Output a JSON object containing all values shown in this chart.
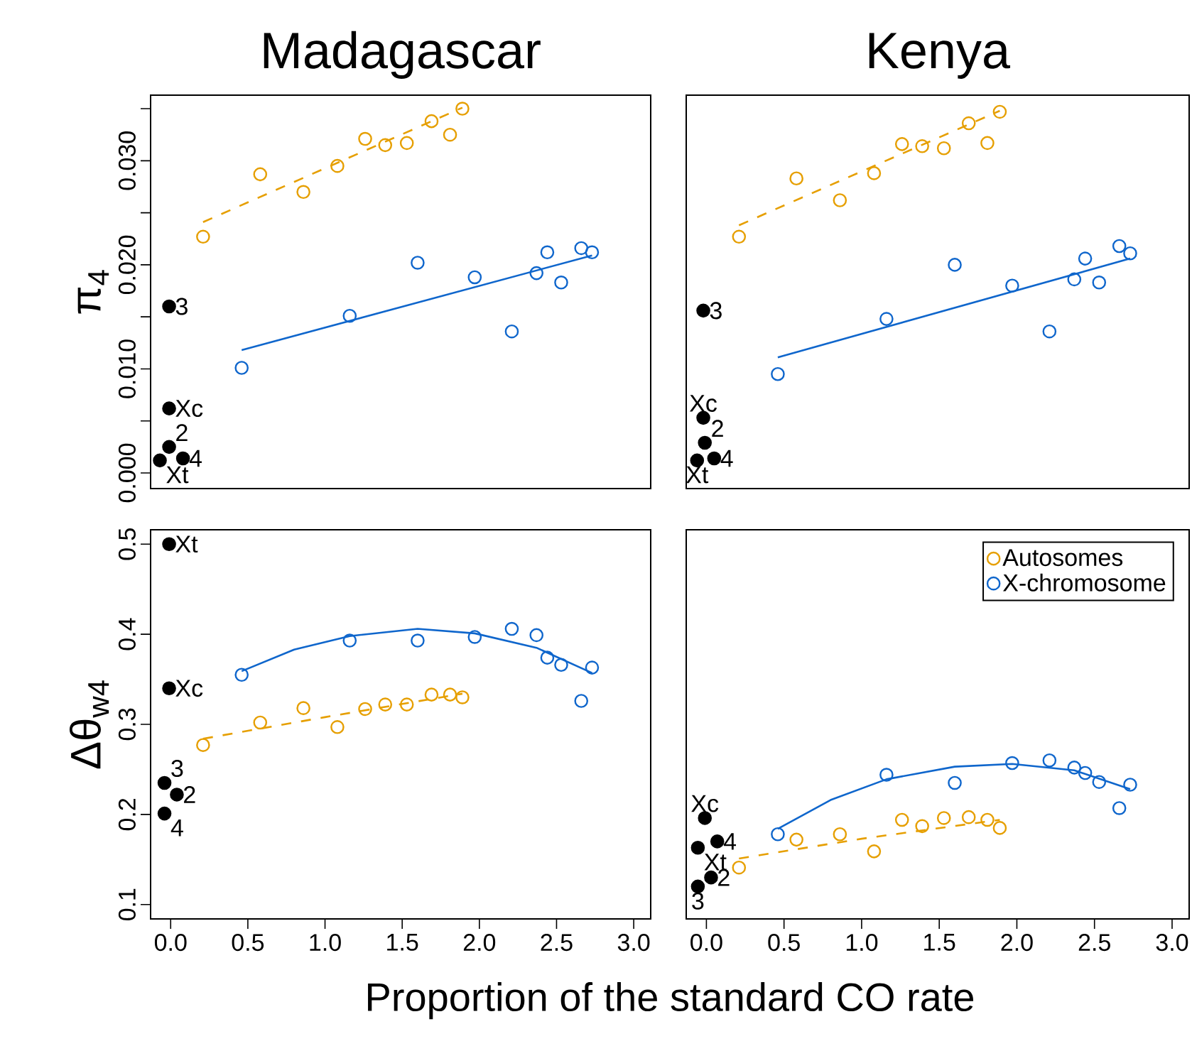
{
  "chart_data": [
    {
      "type": "scatter",
      "title": "Madagascar",
      "ylabel": "π$_{4}$",
      "xlim": [
        -0.13,
        3.11
      ],
      "ylim": [
        -0.0015,
        0.0363
      ],
      "yticks": [
        {
          "value": 0,
          "label": "0.000"
        },
        {
          "value": 0.005,
          "label": null
        },
        {
          "value": 0.01,
          "label": "0.010"
        },
        {
          "value": 0.015,
          "label": null
        },
        {
          "value": 0.02,
          "label": "0.020"
        },
        {
          "value": 0.025,
          "label": null
        },
        {
          "value": 0.03,
          "label": "0.030"
        },
        {
          "value": 0.035,
          "label": null
        }
      ],
      "tick_labels": "y",
      "marker": "circle",
      "series": [
        {
          "color": "#e69f00",
          "x": [
            0.21,
            0.58,
            0.86,
            1.08,
            1.26,
            1.39,
            1.53,
            1.69,
            1.81,
            1.89
          ],
          "values": [
            0.0227,
            0.0287,
            0.027,
            0.0295,
            0.0321,
            0.0315,
            0.0317,
            0.0338,
            0.0325,
            0.035
          ]
        },
        {
          "color": "#0f66cc",
          "x": [
            0.46,
            1.16,
            1.6,
            1.97,
            2.21,
            2.37,
            2.44,
            2.53,
            2.66,
            2.73
          ],
          "values": [
            0.0101,
            0.0151,
            0.0202,
            0.0188,
            0.0136,
            0.0192,
            0.0212,
            0.0183,
            0.0216,
            0.0212
          ]
        },
        {
          "color": "#000000",
          "x": [
            -0.01,
            -0.01,
            -0.01,
            0.08,
            -0.07
          ],
          "values": [
            0.016,
            0.0062,
            0.0025,
            0.0014,
            0.0012
          ]
        },
        {
          "type": "line",
          "marker": "none",
          "line_style": "dashed",
          "color": "#e69f00",
          "x": [
            0.21,
            1.89
          ],
          "values": [
            0.0241,
            0.0351
          ]
        },
        {
          "type": "line",
          "marker": "none",
          "line_style": "solid",
          "color": "#0f66cc",
          "x": [
            0.46,
            2.73
          ],
          "values": [
            0.0118,
            0.0209
          ]
        }
      ],
      "annotations": [
        {
          "text": "3",
          "x": -0.01,
          "y": 0.016
        },
        {
          "text": "Xc",
          "x": -0.01,
          "y": 0.0062
        },
        {
          "text": "2",
          "x": -0.01,
          "y": 0.0025
        },
        {
          "text": "4",
          "x": 0.08,
          "y": 0.0014
        },
        {
          "text": "Xt",
          "x": -0.07,
          "y": 0.0012
        }
      ]
    },
    {
      "type": "scatter",
      "title": "Kenya",
      "xlim": [
        -0.13,
        3.11
      ],
      "ylim": [
        -0.0015,
        0.0363
      ],
      "tick_labels": false,
      "marker": "circle",
      "series": [
        {
          "color": "#e69f00",
          "x": [
            0.21,
            0.58,
            0.86,
            1.08,
            1.26,
            1.39,
            1.53,
            1.69,
            1.81,
            1.89
          ],
          "values": [
            0.0227,
            0.0283,
            0.0262,
            0.0288,
            0.0316,
            0.0314,
            0.0312,
            0.0336,
            0.0317,
            0.0347
          ]
        },
        {
          "color": "#0f66cc",
          "x": [
            0.46,
            1.16,
            1.6,
            1.97,
            2.21,
            2.37,
            2.44,
            2.53,
            2.66,
            2.73
          ],
          "values": [
            0.0095,
            0.0148,
            0.02,
            0.018,
            0.0136,
            0.0186,
            0.0206,
            0.0183,
            0.0218,
            0.0211
          ]
        },
        {
          "color": "#000000",
          "x": [
            -0.02,
            -0.02,
            -0.01,
            0.05,
            -0.06
          ],
          "values": [
            0.0156,
            0.0053,
            0.0029,
            0.0014,
            0.0012
          ]
        },
        {
          "type": "line",
          "marker": "none",
          "line_style": "dashed",
          "color": "#e69f00",
          "x": [
            0.21,
            1.89
          ],
          "values": [
            0.0238,
            0.0348
          ]
        },
        {
          "type": "line",
          "marker": "none",
          "line_style": "solid",
          "color": "#0f66cc",
          "x": [
            0.46,
            2.73
          ],
          "values": [
            0.0111,
            0.0206
          ]
        }
      ],
      "annotations": [
        {
          "text": "3",
          "x": -0.02,
          "y": 0.0156
        },
        {
          "text": "Xc",
          "x": -0.02,
          "y": 0.0053
        },
        {
          "text": "2",
          "x": -0.01,
          "y": 0.0029
        },
        {
          "text": "4",
          "x": 0.05,
          "y": 0.0014
        },
        {
          "text": "Xt",
          "x": -0.06,
          "y": 0.0012
        }
      ]
    },
    {
      "type": "scatter",
      "ylabel": "Δθ$_{w4}$",
      "xlabel": "Proportion of the standard CO rate",
      "xlim": [
        -0.13,
        3.11
      ],
      "ylim": [
        0.084,
        0.516
      ],
      "xticks": [
        {
          "value": 0,
          "label": "0.0"
        },
        {
          "value": 0.5,
          "label": "0.5"
        },
        {
          "value": 1,
          "label": "1.0"
        },
        {
          "value": 1.5,
          "label": "1.5"
        },
        {
          "value": 2,
          "label": "2.0"
        },
        {
          "value": 2.5,
          "label": "2.5"
        },
        {
          "value": 3,
          "label": "3.0"
        }
      ],
      "yticks": [
        0.1,
        0.2,
        0.3,
        0.4,
        0.5
      ],
      "marker": "circle",
      "series": [
        {
          "color": "#e69f00",
          "x": [
            0.21,
            0.58,
            0.86,
            1.08,
            1.26,
            1.39,
            1.53,
            1.69,
            1.81,
            1.89
          ],
          "values": [
            0.277,
            0.302,
            0.318,
            0.297,
            0.317,
            0.322,
            0.322,
            0.333,
            0.333,
            0.33
          ]
        },
        {
          "color": "#0f66cc",
          "x": [
            0.46,
            1.16,
            1.6,
            1.97,
            2.21,
            2.37,
            2.44,
            2.53,
            2.66,
            2.73
          ],
          "values": [
            0.355,
            0.393,
            0.393,
            0.397,
            0.406,
            0.399,
            0.374,
            0.366,
            0.326,
            0.363
          ]
        },
        {
          "color": "#000000",
          "x": [
            -0.01,
            -0.01,
            -0.04,
            0.04,
            -0.04
          ],
          "values": [
            0.5,
            0.34,
            0.235,
            0.222,
            0.201
          ]
        },
        {
          "type": "line",
          "marker": "none",
          "line_style": "dashed",
          "color": "#e69f00",
          "x": [
            0.21,
            1.0,
            1.89
          ],
          "values": [
            0.284,
            0.308,
            0.334
          ]
        },
        {
          "type": "line",
          "marker": "none",
          "line_style": "solid",
          "color": "#0f66cc",
          "x": [
            0.46,
            0.8,
            1.16,
            1.6,
            1.97,
            2.37,
            2.73
          ],
          "values": [
            0.359,
            0.383,
            0.398,
            0.406,
            0.401,
            0.385,
            0.357
          ]
        }
      ],
      "annotations": [
        {
          "text": "Xt",
          "x": -0.01,
          "y": 0.5
        },
        {
          "text": "Xc",
          "x": -0.01,
          "y": 0.34
        },
        {
          "text": "3",
          "x": -0.04,
          "y": 0.235
        },
        {
          "text": "2",
          "x": 0.04,
          "y": 0.222
        },
        {
          "text": "4",
          "x": -0.04,
          "y": 0.201
        }
      ]
    },
    {
      "type": "scatter",
      "xlim": [
        -0.13,
        3.11
      ],
      "ylim": [
        0.084,
        0.516
      ],
      "xticks": [
        {
          "value": 0,
          "label": "0.0"
        },
        {
          "value": 0.5,
          "label": "0.5"
        },
        {
          "value": 1,
          "label": "1.0"
        },
        {
          "value": 1.5,
          "label": "1.5"
        },
        {
          "value": 2,
          "label": "2.0"
        },
        {
          "value": 2.5,
          "label": "2.5"
        },
        {
          "value": 3,
          "label": "3.0"
        }
      ],
      "tick_labels": "x",
      "marker": "circle",
      "legend": "top right",
      "series": [
        {
          "name": "Autosomes",
          "color": "#e69f00",
          "x": [
            0.21,
            0.58,
            0.86,
            1.08,
            1.26,
            1.39,
            1.53,
            1.69,
            1.81,
            1.89
          ],
          "values": [
            0.141,
            0.172,
            0.178,
            0.159,
            0.194,
            0.187,
            0.196,
            0.197,
            0.194,
            0.185
          ]
        },
        {
          "name": "X-chromosome",
          "color": "#0f66cc",
          "x": [
            0.46,
            1.16,
            1.6,
            1.97,
            2.21,
            2.37,
            2.44,
            2.53,
            2.66,
            2.73
          ],
          "values": [
            0.178,
            0.244,
            0.235,
            0.257,
            0.26,
            0.252,
            0.246,
            0.236,
            0.207,
            0.233
          ]
        },
        {
          "color": "#000000",
          "x": [
            -0.01,
            0.07,
            -0.055,
            0.03,
            -0.055
          ],
          "values": [
            0.196,
            0.17,
            0.163,
            0.13,
            0.12
          ]
        },
        {
          "type": "line",
          "marker": "none",
          "line_style": "dashed",
          "color": "#e69f00",
          "x": [
            0.21,
            1.0,
            1.89
          ],
          "values": [
            0.151,
            0.173,
            0.194
          ]
        },
        {
          "type": "line",
          "marker": "none",
          "line_style": "solid",
          "color": "#0f66cc",
          "x": [
            0.46,
            0.8,
            1.16,
            1.6,
            1.97,
            2.37,
            2.73
          ],
          "values": [
            0.184,
            0.216,
            0.239,
            0.253,
            0.256,
            0.249,
            0.228
          ]
        }
      ],
      "annotations": [
        {
          "text": "Xc",
          "x": -0.01,
          "y": 0.196
        },
        {
          "text": "4",
          "x": 0.07,
          "y": 0.17
        },
        {
          "text": "Xt",
          "x": -0.055,
          "y": 0.163
        },
        {
          "text": "2",
          "x": 0.03,
          "y": 0.13
        },
        {
          "text": "3",
          "x": -0.055,
          "y": 0.12
        }
      ]
    }
  ]
}
